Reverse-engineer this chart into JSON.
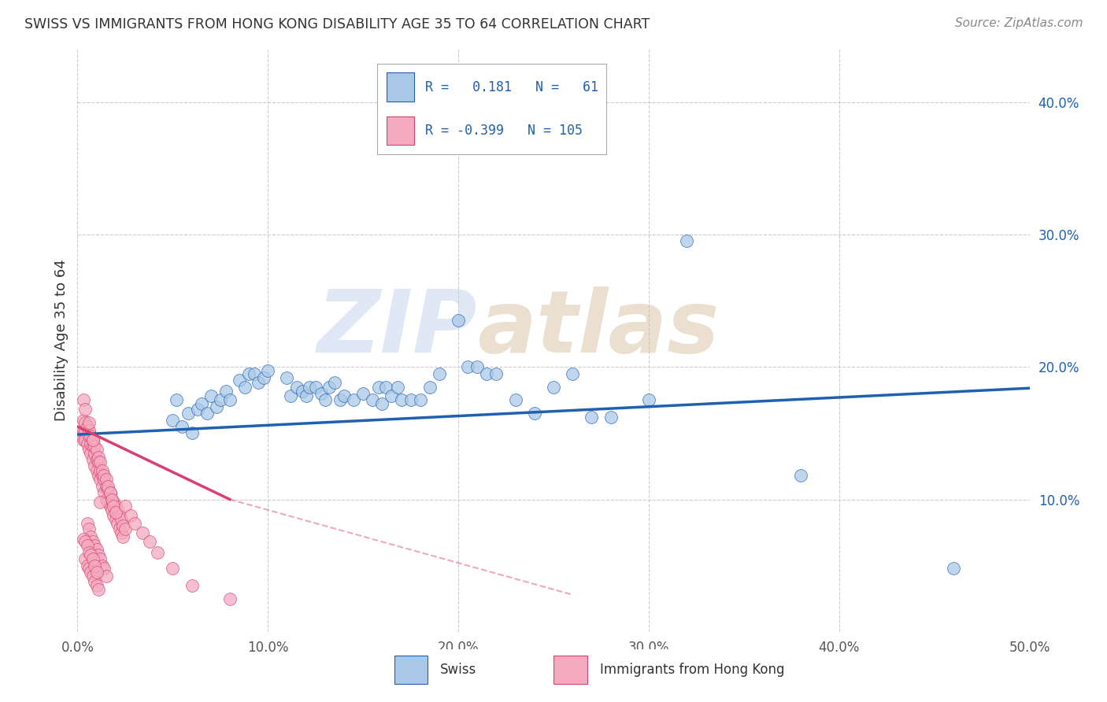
{
  "title": "SWISS VS IMMIGRANTS FROM HONG KONG DISABILITY AGE 35 TO 64 CORRELATION CHART",
  "source": "Source: ZipAtlas.com",
  "ylabel": "Disability Age 35 to 64",
  "xlim": [
    0.0,
    0.5
  ],
  "ylim": [
    0.0,
    0.44
  ],
  "xticks": [
    0.0,
    0.1,
    0.2,
    0.3,
    0.4,
    0.5
  ],
  "yticks": [
    0.1,
    0.2,
    0.3,
    0.4
  ],
  "xtick_labels": [
    "0.0%",
    "10.0%",
    "20.0%",
    "30.0%",
    "40.0%",
    "50.0%"
  ],
  "ytick_labels": [
    "10.0%",
    "20.0%",
    "30.0%",
    "40.0%"
  ],
  "swiss_color": "#aac9e8",
  "hk_color": "#f4aabf",
  "swiss_line_color": "#2060b0",
  "hk_line_color": "#d84070",
  "swiss_R": 0.181,
  "swiss_N": 61,
  "hk_R": -0.399,
  "hk_N": 105,
  "swiss_x": [
    0.05,
    0.052,
    0.055,
    0.058,
    0.06,
    0.063,
    0.065,
    0.068,
    0.07,
    0.073,
    0.075,
    0.078,
    0.08,
    0.085,
    0.088,
    0.09,
    0.093,
    0.095,
    0.098,
    0.1,
    0.11,
    0.112,
    0.115,
    0.118,
    0.12,
    0.122,
    0.125,
    0.128,
    0.13,
    0.132,
    0.135,
    0.138,
    0.14,
    0.145,
    0.15,
    0.155,
    0.158,
    0.16,
    0.162,
    0.165,
    0.168,
    0.17,
    0.175,
    0.18,
    0.185,
    0.19,
    0.2,
    0.205,
    0.21,
    0.215,
    0.22,
    0.23,
    0.24,
    0.25,
    0.26,
    0.27,
    0.28,
    0.3,
    0.32,
    0.38,
    0.46
  ],
  "swiss_y": [
    0.16,
    0.175,
    0.155,
    0.165,
    0.15,
    0.168,
    0.172,
    0.165,
    0.178,
    0.17,
    0.175,
    0.182,
    0.175,
    0.19,
    0.185,
    0.195,
    0.195,
    0.188,
    0.192,
    0.197,
    0.192,
    0.178,
    0.185,
    0.182,
    0.178,
    0.185,
    0.185,
    0.18,
    0.175,
    0.185,
    0.188,
    0.175,
    0.178,
    0.175,
    0.18,
    0.175,
    0.185,
    0.172,
    0.185,
    0.178,
    0.185,
    0.175,
    0.175,
    0.175,
    0.185,
    0.195,
    0.235,
    0.2,
    0.2,
    0.195,
    0.195,
    0.175,
    0.165,
    0.185,
    0.195,
    0.162,
    0.162,
    0.175,
    0.295,
    0.118,
    0.048
  ],
  "hk_x": [
    0.002,
    0.003,
    0.003,
    0.004,
    0.004,
    0.005,
    0.005,
    0.006,
    0.006,
    0.007,
    0.007,
    0.008,
    0.008,
    0.009,
    0.009,
    0.01,
    0.01,
    0.011,
    0.011,
    0.012,
    0.012,
    0.013,
    0.013,
    0.014,
    0.014,
    0.015,
    0.015,
    0.016,
    0.016,
    0.017,
    0.017,
    0.018,
    0.018,
    0.019,
    0.019,
    0.02,
    0.02,
    0.021,
    0.021,
    0.022,
    0.022,
    0.023,
    0.023,
    0.024,
    0.024,
    0.025,
    0.003,
    0.004,
    0.005,
    0.006,
    0.007,
    0.008,
    0.009,
    0.01,
    0.011,
    0.012,
    0.013,
    0.014,
    0.015,
    0.016,
    0.017,
    0.018,
    0.019,
    0.02,
    0.005,
    0.006,
    0.007,
    0.008,
    0.009,
    0.01,
    0.011,
    0.012,
    0.013,
    0.014,
    0.015,
    0.004,
    0.005,
    0.006,
    0.007,
    0.008,
    0.009,
    0.01,
    0.011,
    0.003,
    0.004,
    0.005,
    0.006,
    0.007,
    0.008,
    0.009,
    0.01,
    0.025,
    0.028,
    0.03,
    0.034,
    0.038,
    0.042,
    0.05,
    0.06,
    0.08,
    0.003,
    0.004,
    0.006,
    0.008,
    0.012
  ],
  "hk_y": [
    0.148,
    0.152,
    0.145,
    0.152,
    0.145,
    0.155,
    0.142,
    0.148,
    0.138,
    0.142,
    0.135,
    0.14,
    0.13,
    0.135,
    0.125,
    0.13,
    0.122,
    0.128,
    0.118,
    0.122,
    0.115,
    0.118,
    0.11,
    0.115,
    0.105,
    0.11,
    0.1,
    0.108,
    0.098,
    0.105,
    0.095,
    0.1,
    0.092,
    0.098,
    0.088,
    0.095,
    0.085,
    0.092,
    0.082,
    0.088,
    0.078,
    0.085,
    0.075,
    0.08,
    0.072,
    0.078,
    0.16,
    0.158,
    0.155,
    0.152,
    0.148,
    0.145,
    0.14,
    0.138,
    0.132,
    0.128,
    0.122,
    0.118,
    0.115,
    0.11,
    0.105,
    0.1,
    0.095,
    0.09,
    0.082,
    0.078,
    0.072,
    0.068,
    0.065,
    0.062,
    0.058,
    0.055,
    0.05,
    0.048,
    0.042,
    0.055,
    0.05,
    0.048,
    0.045,
    0.042,
    0.038,
    0.035,
    0.032,
    0.07,
    0.068,
    0.065,
    0.06,
    0.058,
    0.055,
    0.05,
    0.045,
    0.095,
    0.088,
    0.082,
    0.075,
    0.068,
    0.06,
    0.048,
    0.035,
    0.025,
    0.175,
    0.168,
    0.158,
    0.145,
    0.098
  ],
  "watermark_zip": "ZIP",
  "watermark_atlas": "atlas",
  "background_color": "#ffffff",
  "grid_color": "#cccccc",
  "title_color": "#333333",
  "swiss_trendline": [
    0.0,
    0.149,
    0.5,
    0.184
  ],
  "hk_trendline_solid": [
    0.0,
    0.155,
    0.08,
    0.1
  ],
  "hk_trendline_dash": [
    0.08,
    0.1,
    0.26,
    0.028
  ]
}
